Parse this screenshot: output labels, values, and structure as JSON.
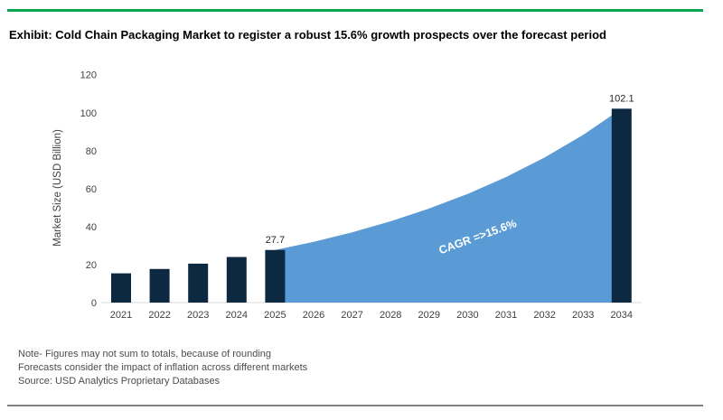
{
  "header": {
    "title": "Exhibit: Cold Chain Packaging Market to register a robust 15.6% growth prospects over the forecast period"
  },
  "chart_data": {
    "type": "bar+area",
    "title": "",
    "xlabel": "",
    "ylabel": "Market Size (USD Billion)",
    "ylim": [
      0,
      120
    ],
    "ytick_step": 20,
    "grid": false,
    "legend": "none",
    "categories": [
      "2021",
      "2022",
      "2023",
      "2024",
      "2025",
      "2026",
      "2027",
      "2028",
      "2029",
      "2030",
      "2031",
      "2032",
      "2033",
      "2034"
    ],
    "series": [
      {
        "name": "Market size bars",
        "type": "bar",
        "x": [
          "2021",
          "2022",
          "2023",
          "2024",
          "2025",
          "2034"
        ],
        "values": [
          15.4,
          17.7,
          20.5,
          24.0,
          27.7,
          102.1
        ]
      },
      {
        "name": "Forecast trend area",
        "type": "area",
        "x": [
          "2025",
          "2026",
          "2027",
          "2028",
          "2029",
          "2030",
          "2031",
          "2032",
          "2033",
          "2034"
        ],
        "values": [
          27.7,
          32.0,
          37.0,
          42.8,
          49.5,
          57.2,
          66.1,
          76.4,
          88.3,
          102.1
        ]
      }
    ],
    "data_labels": [
      {
        "x": "2025",
        "text": "27.7"
      },
      {
        "x": "2034",
        "text": "102.1"
      }
    ],
    "annotation": "CAGR =>15.6%"
  },
  "footer": {
    "note_line1": "Note- Figures may not sum to totals, because of rounding",
    "note_line2": "Forecasts consider the impact of inflation across different markets",
    "note_line3": "Source: USD Analytics Proprietary Databases"
  },
  "colors": {
    "accent_green": "#0aa652",
    "bar_navy": "#0d2841",
    "area_blue": "#5b9bd5",
    "axis_line": "#d9d9d9",
    "tick_text": "#404040",
    "annotation_text": "#ffffff",
    "divider_gray": "#7f7f7f"
  }
}
